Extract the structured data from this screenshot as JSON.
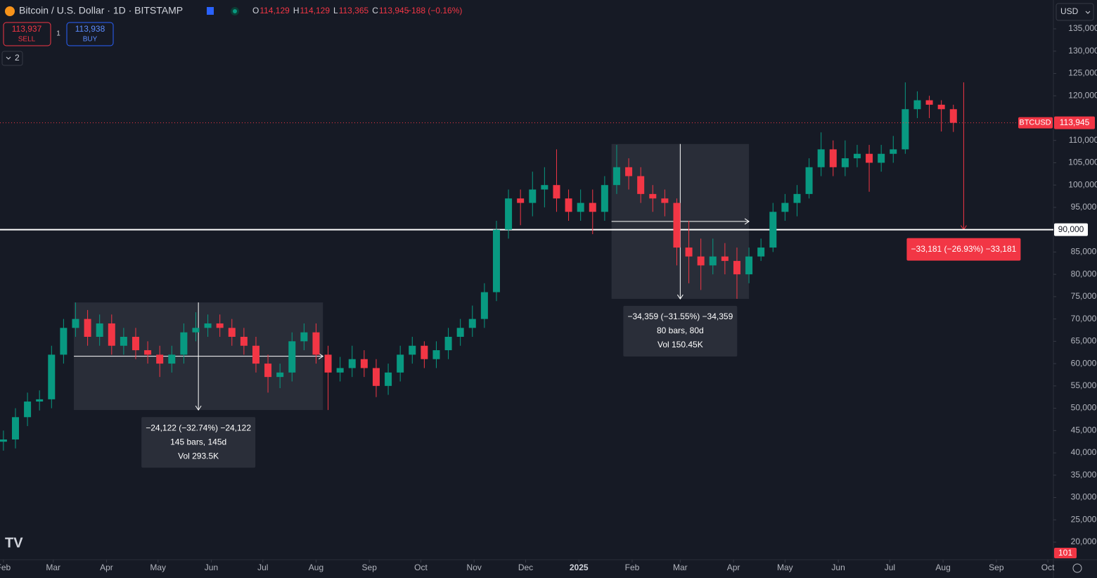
{
  "header": {
    "symbol": "Bitcoin / U.S. Dollar · 1D · BITSTAMP",
    "ohlc": [
      {
        "key": "O",
        "value": "114,129"
      },
      {
        "key": "H",
        "value": "114,129"
      },
      {
        "key": "L",
        "value": "113,365"
      },
      {
        "key": "C",
        "value": "113,945"
      }
    ],
    "change": "−188 (−0.16%)",
    "sell": {
      "price": "113,937",
      "label": "SELL"
    },
    "buy": {
      "price": "113,938",
      "label": "BUY"
    },
    "spread": "1",
    "indicators": "2",
    "currency": "USD"
  },
  "chart_data": {
    "type": "candlestick",
    "up_color": "#089981",
    "down_color": "#f23645",
    "x": [
      0,
      7,
      14,
      21,
      28,
      35,
      42,
      49,
      56,
      63,
      70,
      77,
      84,
      91,
      98,
      105,
      112,
      119,
      126,
      133,
      140,
      147,
      154,
      161,
      168,
      175,
      182,
      189,
      196,
      203,
      210,
      217,
      224,
      231,
      238,
      245,
      252,
      259,
      266,
      273,
      280,
      287,
      294,
      301,
      308,
      315,
      322,
      329,
      336,
      343,
      350,
      357,
      364,
      371,
      378,
      385,
      392,
      399,
      406,
      413,
      420,
      427,
      434,
      441,
      448,
      455,
      462,
      469,
      476,
      483,
      490,
      497,
      504,
      511,
      518,
      525,
      532,
      539,
      546,
      553
    ],
    "open": [
      42500,
      43000,
      48000,
      51500,
      52000,
      62000,
      68000,
      70000,
      66000,
      69000,
      64000,
      66000,
      63000,
      62000,
      60000,
      62000,
      67000,
      68000,
      69000,
      68000,
      66000,
      64000,
      60000,
      57000,
      58000,
      65000,
      67000,
      62000,
      58000,
      59000,
      61000,
      59000,
      55000,
      58000,
      62000,
      64000,
      61000,
      63000,
      66000,
      68000,
      70000,
      76000,
      90000,
      97000,
      96000,
      99000,
      100000,
      97000,
      94000,
      96000,
      94000,
      100000,
      104000,
      102000,
      98000,
      97000,
      96000,
      86000,
      84000,
      82000,
      84000,
      83000,
      80000,
      84000,
      86000,
      94000,
      96000,
      98000,
      104000,
      108000,
      104000,
      106000,
      107000,
      105000,
      107000,
      108000,
      117000,
      119000,
      118000,
      117000
    ],
    "high": [
      45000,
      50000,
      53500,
      54000,
      64000,
      70000,
      73700,
      72000,
      71000,
      71000,
      68000,
      68000,
      65000,
      64000,
      64000,
      69000,
      71500,
      71000,
      71000,
      70000,
      68000,
      66000,
      62000,
      60000,
      67000,
      69000,
      69000,
      64000,
      61500,
      64000,
      63000,
      61000,
      60000,
      64000,
      66000,
      65000,
      65000,
      68000,
      70000,
      73000,
      78000,
      92000,
      99000,
      99000,
      103000,
      104000,
      108000,
      99000,
      99000,
      99000,
      102000,
      109000,
      106000,
      104000,
      100000,
      99000,
      97000,
      92000,
      88000,
      88000,
      87000,
      86000,
      86000,
      88000,
      96000,
      98000,
      100000,
      106000,
      111800,
      110000,
      110000,
      109000,
      109000,
      109000,
      111000,
      123000,
      121000,
      120000,
      119000,
      118000
    ],
    "low": [
      40500,
      41000,
      46000,
      49500,
      50000,
      60000,
      66000,
      64000,
      64000,
      62000,
      62000,
      61000,
      60000,
      57000,
      58000,
      60000,
      65000,
      66000,
      66000,
      64000,
      62000,
      58000,
      53500,
      54500,
      56000,
      63000,
      60000,
      49600,
      56000,
      57000,
      57000,
      52500,
      53000,
      56000,
      60000,
      59000,
      59000,
      61000,
      64000,
      66000,
      68000,
      74000,
      88000,
      91000,
      93000,
      95000,
      94000,
      92000,
      92000,
      89000,
      92000,
      98000,
      99000,
      96000,
      94000,
      93000,
      82000,
      78000,
      76500,
      80000,
      80000,
      74500,
      78000,
      83000,
      85000,
      92000,
      93000,
      97000,
      102000,
      102000,
      102000,
      104000,
      98500,
      103000,
      105000,
      107000,
      115000,
      115000,
      112000,
      111900
    ],
    "close": [
      43000,
      48000,
      51500,
      52000,
      62000,
      68000,
      70000,
      66000,
      69000,
      64000,
      66000,
      63000,
      62000,
      60000,
      62000,
      67000,
      68000,
      69000,
      68000,
      66000,
      64000,
      60000,
      57000,
      58000,
      65000,
      67000,
      62000,
      58000,
      59000,
      61000,
      59000,
      55000,
      58000,
      62000,
      64000,
      61000,
      63000,
      66000,
      68000,
      70000,
      76000,
      90000,
      97000,
      96000,
      99000,
      100000,
      97000,
      94000,
      96000,
      94000,
      100000,
      104000,
      102000,
      98000,
      97000,
      96000,
      86000,
      84000,
      82000,
      84000,
      83000,
      80000,
      84000,
      86000,
      94000,
      96000,
      98000,
      104000,
      108000,
      104000,
      106000,
      107000,
      105000,
      107000,
      108000,
      117000,
      119000,
      118000,
      117000,
      113945
    ],
    "xlim": [
      -2,
      610
    ],
    "ylim": [
      16220,
      141460
    ],
    "xticks": [
      {
        "value": 0,
        "label": "Feb"
      },
      {
        "value": 29,
        "label": "Mar"
      },
      {
        "value": 60,
        "label": "Apr"
      },
      {
        "value": 90,
        "label": "May"
      },
      {
        "value": 121,
        "label": "Jun"
      },
      {
        "value": 151,
        "label": "Jul"
      },
      {
        "value": 182,
        "label": "Aug"
      },
      {
        "value": 213,
        "label": "Sep"
      },
      {
        "value": 243,
        "label": "Oct"
      },
      {
        "value": 274,
        "label": "Nov"
      },
      {
        "value": 304,
        "label": "Dec"
      },
      {
        "value": 335,
        "label": "2025"
      },
      {
        "value": 366,
        "label": "Feb"
      },
      {
        "value": 394,
        "label": "Mar"
      },
      {
        "value": 425,
        "label": "Apr"
      },
      {
        "value": 455,
        "label": "May"
      },
      {
        "value": 486,
        "label": "Jun"
      },
      {
        "value": 516,
        "label": "Jul"
      },
      {
        "value": 547,
        "label": "Aug"
      },
      {
        "value": 578,
        "label": "Sep"
      },
      {
        "value": 608,
        "label": "Oct"
      }
    ],
    "yticks": [
      {
        "value": 20000,
        "label": "20,000"
      },
      {
        "value": 25000,
        "label": "25,000"
      },
      {
        "value": 30000,
        "label": "30,000"
      },
      {
        "value": 35000,
        "label": "35,000"
      },
      {
        "value": 40000,
        "label": "40,000"
      },
      {
        "value": 45000,
        "label": "45,000"
      },
      {
        "value": 50000,
        "label": "50,000"
      },
      {
        "value": 55000,
        "label": "55,000"
      },
      {
        "value": 60000,
        "label": "60,000"
      },
      {
        "value": 65000,
        "label": "65,000"
      },
      {
        "value": 70000,
        "label": "70,000"
      },
      {
        "value": 75000,
        "label": "75,000"
      },
      {
        "value": 80000,
        "label": "80,000"
      },
      {
        "value": 85000,
        "label": "85,000"
      },
      {
        "value": 95000,
        "label": "95,000"
      },
      {
        "value": 100000,
        "label": "100,000"
      },
      {
        "value": 105000,
        "label": "105,000"
      },
      {
        "value": 110000,
        "label": "110,000"
      },
      {
        "value": 120000,
        "label": "120,000"
      },
      {
        "value": 125000,
        "label": "125,000"
      },
      {
        "value": 130000,
        "label": "130,000"
      },
      {
        "value": 135000,
        "label": "135,000"
      }
    ],
    "hline": {
      "value": 90000,
      "label": "90,000"
    },
    "price_line": {
      "value": 113945,
      "name": "BTCUSD",
      "label": "113,945"
    },
    "volume_label": "101",
    "measurements": [
      {
        "from_x": 41,
        "to_x": 186,
        "start": 73700,
        "end": 49600,
        "lines": [
          "−24,122 (−32.74%) −24,122",
          "145 bars, 145d",
          "Vol 293.5K"
        ]
      },
      {
        "from_x": 354,
        "to_x": 434,
        "start": 109200,
        "end": 74500,
        "lines": [
          "−34,359 (−31.55%) −34,359",
          "80 bars, 80d",
          "Vol 150.45K"
        ]
      },
      {
        "from_x": 559,
        "to_x": 559,
        "start": 123000,
        "end": 90000,
        "lines": [
          "−33,181 (−26.93%) −33,181"
        ]
      }
    ]
  }
}
